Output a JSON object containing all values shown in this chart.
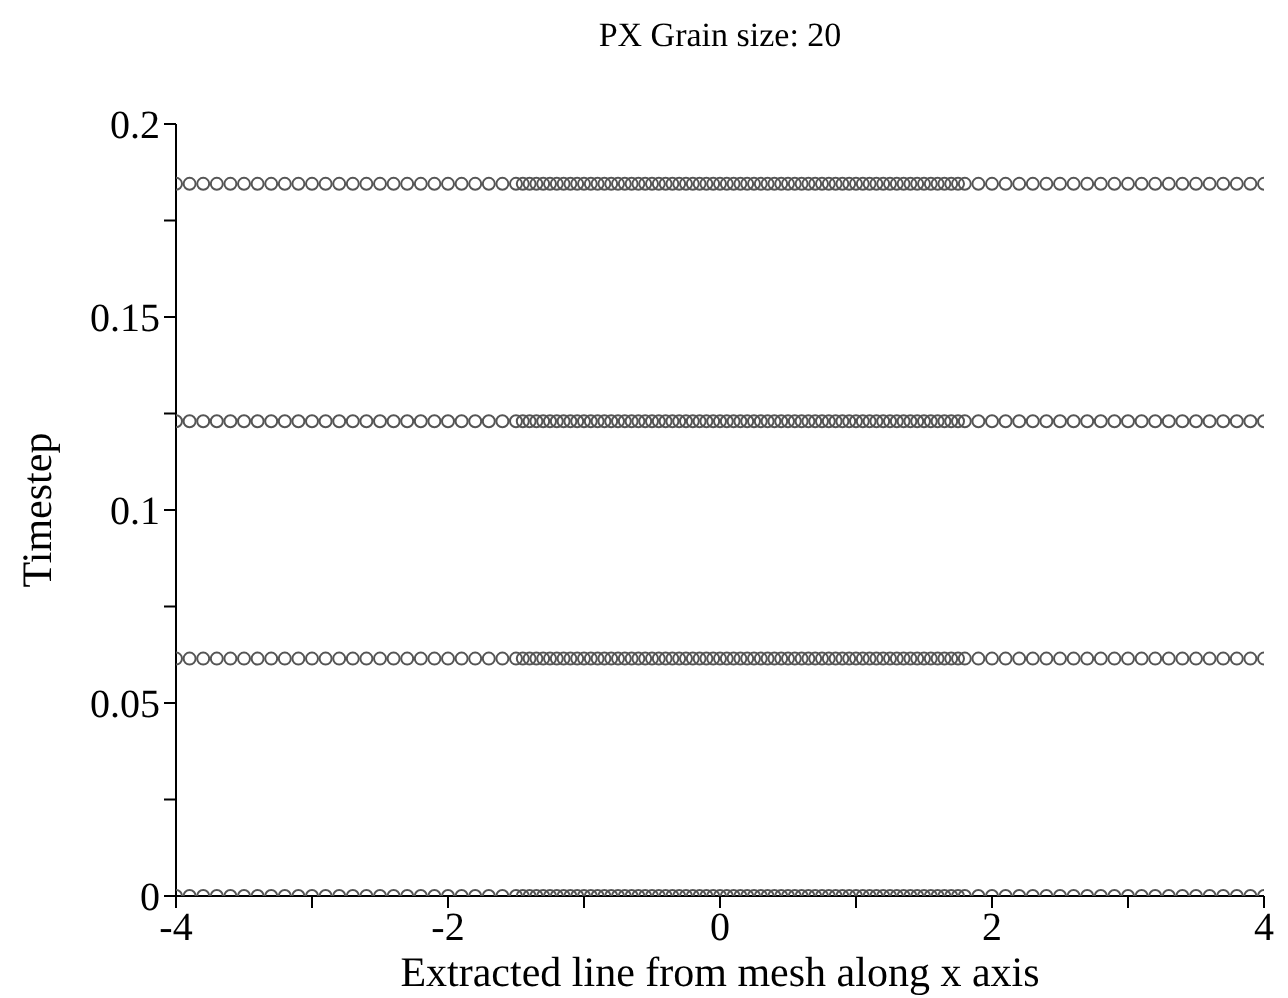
{
  "chart_data": {
    "type": "scatter",
    "title": "PX Grain size: 20",
    "xlabel": "Extracted line from mesh along x axis",
    "ylabel": "Timestep",
    "xlim": [
      -4,
      4
    ],
    "ylim": [
      0,
      0.2
    ],
    "xticks": [
      -4,
      {
        "value": -3,
        "label": null
      },
      -2,
      {
        "value": -1,
        "label": null
      },
      0,
      {
        "value": 1,
        "label": null
      },
      2,
      {
        "value": 3,
        "label": null
      },
      4
    ],
    "yticks": [
      0,
      {
        "value": 0.025,
        "label": null
      },
      0.05,
      {
        "value": 0.075,
        "label": null
      },
      0.1,
      {
        "value": 0.125,
        "label": null
      },
      0.15,
      {
        "value": 0.175,
        "label": null
      },
      0.2
    ],
    "marker": "circle",
    "grid": false,
    "legend": false,
    "x": [
      -4,
      -3.9,
      -3.8,
      -3.7,
      -3.6,
      -3.5,
      -3.4,
      -3.3,
      -3.2,
      -3.1,
      -3,
      -2.9,
      -2.8,
      -2.7,
      -2.6,
      -2.5,
      -2.4,
      -2.3,
      -2.2,
      -2.1,
      -2,
      -1.9,
      -1.8,
      -1.7,
      -1.6,
      -1.5,
      -1.45,
      -1.4,
      -1.35,
      -1.3,
      -1.25,
      -1.2,
      -1.15,
      -1.1,
      -1.05,
      -1,
      -0.95,
      -0.9,
      -0.85,
      -0.8,
      -0.75,
      -0.7,
      -0.65,
      -0.6,
      -0.55,
      -0.5,
      -0.45,
      -0.4,
      -0.35,
      -0.3,
      -0.25,
      -0.2,
      -0.15,
      -0.1,
      -0.05,
      0,
      0.05,
      0.1,
      0.15,
      0.2,
      0.25,
      0.3,
      0.35,
      0.4,
      0.45,
      0.5,
      0.55,
      0.6,
      0.65,
      0.7,
      0.75,
      0.8,
      0.85,
      0.9,
      0.95,
      1,
      1.05,
      1.1,
      1.15,
      1.2,
      1.25,
      1.3,
      1.35,
      1.4,
      1.45,
      1.5,
      1.55,
      1.6,
      1.65,
      1.7,
      1.75,
      1.8,
      1.9,
      2,
      2.1,
      2.2,
      2.3,
      2.4,
      2.5,
      2.6,
      2.7,
      2.8,
      2.9,
      3,
      3.1,
      3.2,
      3.3,
      3.4,
      3.5,
      3.6,
      3.7,
      3.8,
      3.9,
      4
    ],
    "series": [
      {
        "color": "#555555",
        "values": [
          0,
          0,
          0,
          0,
          0,
          0,
          0,
          0,
          0,
          0,
          0,
          0,
          0,
          0,
          0,
          0,
          0,
          0,
          0,
          0,
          0,
          0,
          0,
          0,
          0,
          0,
          0,
          0,
          0,
          0,
          0,
          0,
          0,
          0,
          0,
          0,
          0,
          0,
          0,
          0,
          0,
          0,
          0,
          0,
          0,
          0,
          0,
          0,
          0,
          0,
          0,
          0,
          0,
          0,
          0,
          0,
          0,
          0,
          0,
          0,
          0,
          0,
          0,
          0,
          0,
          0,
          0,
          0,
          0,
          0,
          0,
          0,
          0,
          0,
          0,
          0,
          0,
          0,
          0,
          0,
          0,
          0,
          0,
          0,
          0,
          0,
          0,
          0,
          0,
          0,
          0,
          0,
          0,
          0,
          0,
          0,
          0,
          0,
          0,
          0,
          0,
          0,
          0,
          0,
          0,
          0,
          0,
          0,
          0,
          0,
          0,
          0,
          0,
          0
        ]
      },
      {
        "color": "#555555",
        "values": [
          0.0615,
          0.0615,
          0.0615,
          0.0615,
          0.0615,
          0.0615,
          0.0615,
          0.0615,
          0.0615,
          0.0615,
          0.0615,
          0.0615,
          0.0615,
          0.0615,
          0.0615,
          0.0615,
          0.0615,
          0.0615,
          0.0615,
          0.0615,
          0.0615,
          0.0615,
          0.0615,
          0.0615,
          0.0615,
          0.0615,
          0.0615,
          0.0615,
          0.0615,
          0.0615,
          0.0615,
          0.0615,
          0.0615,
          0.0615,
          0.0615,
          0.0615,
          0.0615,
          0.0615,
          0.0615,
          0.0615,
          0.0615,
          0.0615,
          0.0615,
          0.0615,
          0.0615,
          0.0615,
          0.0615,
          0.0615,
          0.0615,
          0.0615,
          0.0615,
          0.0615,
          0.0615,
          0.0615,
          0.0615,
          0.0615,
          0.0615,
          0.0615,
          0.0615,
          0.0615,
          0.0615,
          0.0615,
          0.0615,
          0.0615,
          0.0615,
          0.0615,
          0.0615,
          0.0615,
          0.0615,
          0.0615,
          0.0615,
          0.0615,
          0.0615,
          0.0615,
          0.0615,
          0.0615,
          0.0615,
          0.0615,
          0.0615,
          0.0615,
          0.0615,
          0.0615,
          0.0615,
          0.0615,
          0.0615,
          0.0615,
          0.0615,
          0.0615,
          0.0615,
          0.0615,
          0.0615,
          0.0615,
          0.0615,
          0.0615,
          0.0615,
          0.0615,
          0.0615,
          0.0615,
          0.0615,
          0.0615,
          0.0615,
          0.0615,
          0.0615,
          0.0615,
          0.0615,
          0.0615,
          0.0615,
          0.0615,
          0.0615,
          0.0615,
          0.0615,
          0.0615,
          0.0615,
          0.0615
        ]
      },
      {
        "color": "#555555",
        "values": [
          0.123,
          0.123,
          0.123,
          0.123,
          0.123,
          0.123,
          0.123,
          0.123,
          0.123,
          0.123,
          0.123,
          0.123,
          0.123,
          0.123,
          0.123,
          0.123,
          0.123,
          0.123,
          0.123,
          0.123,
          0.123,
          0.123,
          0.123,
          0.123,
          0.123,
          0.123,
          0.123,
          0.123,
          0.123,
          0.123,
          0.123,
          0.123,
          0.123,
          0.123,
          0.123,
          0.123,
          0.123,
          0.123,
          0.123,
          0.123,
          0.123,
          0.123,
          0.123,
          0.123,
          0.123,
          0.123,
          0.123,
          0.123,
          0.123,
          0.123,
          0.123,
          0.123,
          0.123,
          0.123,
          0.123,
          0.123,
          0.123,
          0.123,
          0.123,
          0.123,
          0.123,
          0.123,
          0.123,
          0.123,
          0.123,
          0.123,
          0.123,
          0.123,
          0.123,
          0.123,
          0.123,
          0.123,
          0.123,
          0.123,
          0.123,
          0.123,
          0.123,
          0.123,
          0.123,
          0.123,
          0.123,
          0.123,
          0.123,
          0.123,
          0.123,
          0.123,
          0.123,
          0.123,
          0.123,
          0.123,
          0.123,
          0.123,
          0.123,
          0.123,
          0.123,
          0.123,
          0.123,
          0.123,
          0.123,
          0.123,
          0.123,
          0.123,
          0.123,
          0.123,
          0.123,
          0.123,
          0.123,
          0.123,
          0.123,
          0.123,
          0.123,
          0.123,
          0.123,
          0.123
        ]
      },
      {
        "color": "#555555",
        "values": [
          0.1845,
          0.1845,
          0.1845,
          0.1845,
          0.1845,
          0.1845,
          0.1845,
          0.1845,
          0.1845,
          0.1845,
          0.1845,
          0.1845,
          0.1845,
          0.1845,
          0.1845,
          0.1845,
          0.1845,
          0.1845,
          0.1845,
          0.1845,
          0.1845,
          0.1845,
          0.1845,
          0.1845,
          0.1845,
          0.1845,
          0.1845,
          0.1845,
          0.1845,
          0.1845,
          0.1845,
          0.1845,
          0.1845,
          0.1845,
          0.1845,
          0.1845,
          0.1845,
          0.1845,
          0.1845,
          0.1845,
          0.1845,
          0.1845,
          0.1845,
          0.1845,
          0.1845,
          0.1845,
          0.1845,
          0.1845,
          0.1845,
          0.1845,
          0.1845,
          0.1845,
          0.1845,
          0.1845,
          0.1845,
          0.1845,
          0.1845,
          0.1845,
          0.1845,
          0.1845,
          0.1845,
          0.1845,
          0.1845,
          0.1845,
          0.1845,
          0.1845,
          0.1845,
          0.1845,
          0.1845,
          0.1845,
          0.1845,
          0.1845,
          0.1845,
          0.1845,
          0.1845,
          0.1845,
          0.1845,
          0.1845,
          0.1845,
          0.1845,
          0.1845,
          0.1845,
          0.1845,
          0.1845,
          0.1845,
          0.1845,
          0.1845,
          0.1845,
          0.1845,
          0.1845,
          0.1845,
          0.1845,
          0.1845,
          0.1845,
          0.1845,
          0.1845,
          0.1845,
          0.1845,
          0.1845,
          0.1845,
          0.1845,
          0.1845,
          0.1845,
          0.1845,
          0.1845,
          0.1845,
          0.1845,
          0.1845,
          0.1845,
          0.1845,
          0.1845,
          0.1845,
          0.1845,
          0.1845
        ]
      }
    ]
  }
}
